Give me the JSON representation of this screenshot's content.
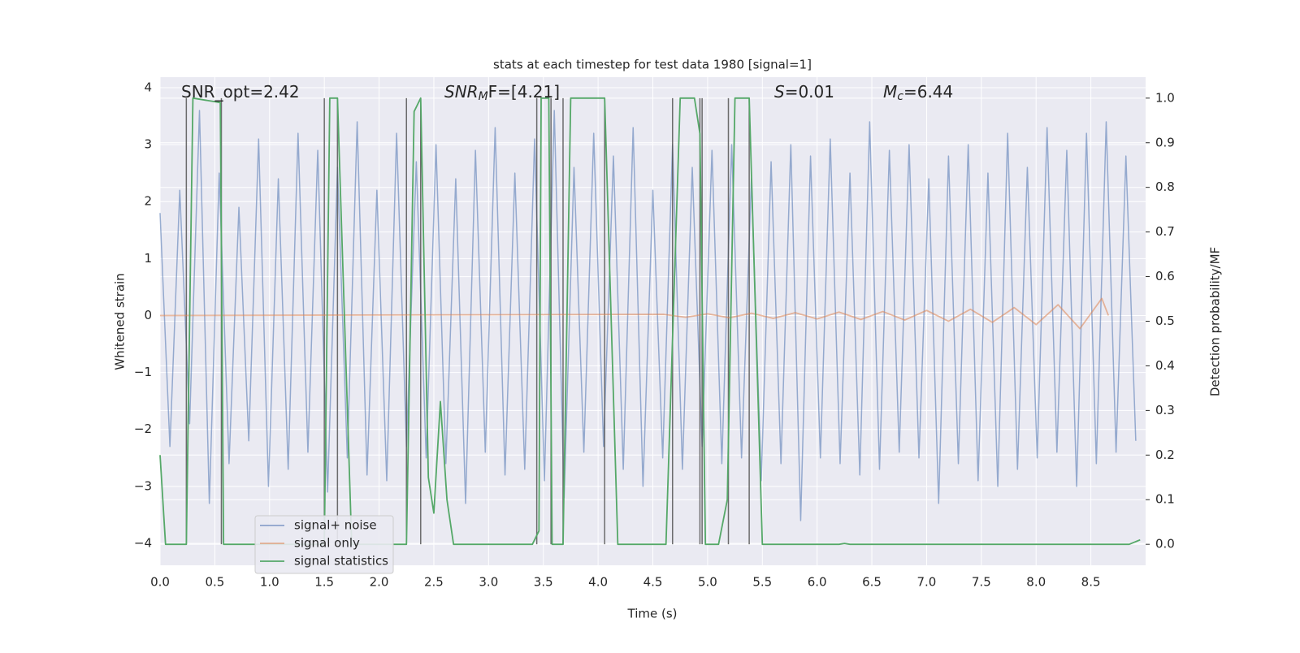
{
  "chart_data": {
    "type": "line",
    "title": "stats at each timestep for test data 1980 [signal=1]",
    "xlabel": "Time (s)",
    "ylabel": "Whitened strain",
    "y2label": "Detection probability/MF",
    "annotations": [
      {
        "main": "SNR_opt=2.42"
      },
      {
        "main": "SNR",
        "sub": "M",
        "rest": "F=[4.21]"
      },
      {
        "main": "S",
        "rest": "=0.01"
      },
      {
        "main": "M",
        "sub": "c",
        "rest": "=6.44"
      }
    ],
    "xlim": [
      0,
      9.0
    ],
    "ylim": [
      -4.385,
      4.185
    ],
    "y2lim": [
      -0.047,
      1.047
    ],
    "xticks": [
      {
        "value": 0,
        "label": "0.0"
      },
      0.5,
      {
        "value": 1,
        "label": "1.0"
      },
      1.5,
      {
        "value": 2,
        "label": "2.0"
      },
      2.5,
      {
        "value": 3,
        "label": "3.0"
      },
      3.5,
      {
        "value": 4,
        "label": "4.0"
      },
      4.5,
      {
        "value": 5,
        "label": "5.0"
      },
      5.5,
      {
        "value": 6,
        "label": "6.0"
      },
      6.5,
      {
        "value": 7,
        "label": "7.0"
      },
      7.5,
      {
        "value": 8,
        "label": "8.0"
      },
      8.5
    ],
    "yticks": [
      {
        "value": -4,
        "label": "−4"
      },
      {
        "value": -3,
        "label": "−3"
      },
      {
        "value": -2,
        "label": "−2"
      },
      {
        "value": -1,
        "label": "−1"
      },
      0,
      1,
      2,
      3,
      4
    ],
    "y2ticks": [
      {
        "value": 0,
        "label": "0.0"
      },
      0.1,
      0.2,
      0.3,
      0.4,
      0.5,
      0.6,
      0.7,
      0.8,
      0.9,
      {
        "value": 1,
        "label": "1.0"
      }
    ],
    "grid": true,
    "legend": "lower left",
    "series": [
      {
        "name": "signal+ noise",
        "color": "#4c72b0",
        "x": [
          0,
          0.09,
          0.18,
          0.27,
          0.36,
          0.45,
          0.54,
          0.63,
          0.72,
          0.81,
          0.9,
          0.99,
          1.08,
          1.17,
          1.26,
          1.35,
          1.44,
          1.53,
          1.62,
          1.71,
          1.8,
          1.89,
          1.98,
          2.07,
          2.16,
          2.25,
          2.34,
          2.43,
          2.52,
          2.61,
          2.7,
          2.79,
          2.88,
          2.97,
          3.06,
          3.15,
          3.24,
          3.33,
          3.42,
          3.51,
          3.6,
          3.69,
          3.78,
          3.87,
          3.96,
          4.05,
          4.14,
          4.23,
          4.32,
          4.41,
          4.5,
          4.59,
          4.68,
          4.77,
          4.86,
          4.95,
          5.04,
          5.13,
          5.22,
          5.31,
          5.4,
          5.49,
          5.58,
          5.67,
          5.76,
          5.85,
          5.94,
          6.03,
          6.12,
          6.21,
          6.3,
          6.39,
          6.48,
          6.57,
          6.66,
          6.75,
          6.84,
          6.93,
          7.02,
          7.11,
          7.2,
          7.29,
          7.38,
          7.47,
          7.56,
          7.65,
          7.74,
          7.83,
          7.92,
          8.01,
          8.1,
          8.19,
          8.28,
          8.37,
          8.46,
          8.55,
          8.64,
          8.73,
          8.82,
          8.91
        ],
        "values": [
          1.8,
          -2.3,
          2.2,
          -1.9,
          3.6,
          -3.3,
          2.5,
          -2.6,
          1.9,
          -2.2,
          3.1,
          -3.0,
          2.4,
          -2.7,
          3.2,
          -2.4,
          2.9,
          -3.1,
          2.6,
          -2.5,
          3.4,
          -2.8,
          2.2,
          -2.9,
          3.2,
          -2.3,
          2.7,
          -2.5,
          3.0,
          -2.6,
          2.4,
          -3.3,
          2.9,
          -2.4,
          3.3,
          -2.8,
          2.5,
          -2.7,
          3.1,
          -2.9,
          3.6,
          -3.2,
          2.6,
          -2.4,
          3.2,
          -2.3,
          2.8,
          -2.7,
          3.3,
          -3.0,
          2.2,
          -2.5,
          3.0,
          -2.7,
          2.6,
          -2.3,
          2.9,
          -2.6,
          3.0,
          -2.5,
          2.4,
          -2.9,
          2.7,
          -2.6,
          3.0,
          -3.6,
          2.8,
          -2.5,
          3.1,
          -2.6,
          2.5,
          -2.8,
          3.4,
          -2.7,
          2.9,
          -2.4,
          3.0,
          -2.5,
          2.4,
          -3.3,
          2.8,
          -2.6,
          3.0,
          -2.9,
          2.5,
          -3.0,
          3.2,
          -2.7,
          2.6,
          -2.5,
          3.3,
          -2.4,
          2.9,
          -3.0,
          3.2,
          -2.6,
          3.4,
          -2.4,
          2.8,
          -2.2
        ]
      },
      {
        "name": "signal only",
        "color": "#dd8452",
        "x": [
          0,
          4.6,
          4.8,
          5.0,
          5.2,
          5.4,
          5.6,
          5.8,
          6.0,
          6.2,
          6.4,
          6.6,
          6.8,
          7.0,
          7.2,
          7.4,
          7.6,
          7.8,
          8.0,
          8.2,
          8.4,
          8.6,
          8.66
        ],
        "values": [
          0,
          0.02,
          -0.03,
          0.03,
          -0.04,
          0.04,
          -0.05,
          0.05,
          -0.06,
          0.06,
          -0.07,
          0.07,
          -0.08,
          0.09,
          -0.1,
          0.11,
          -0.12,
          0.14,
          -0.16,
          0.19,
          -0.23,
          0.3,
          0
        ]
      },
      {
        "name": "signal statistics",
        "color": "#55a868",
        "axis": "y2",
        "x": [
          0,
          0.05,
          0.24,
          0.3,
          0.55,
          0.58,
          0.65,
          1.5,
          1.55,
          1.62,
          1.75,
          2.25,
          2.32,
          2.38,
          2.45,
          2.5,
          2.56,
          2.62,
          2.68,
          3.4,
          3.46,
          3.48,
          3.55,
          3.58,
          3.68,
          3.75,
          4.06,
          4.18,
          4.62,
          4.75,
          4.88,
          4.93,
          4.98,
          5.1,
          5.18,
          5.25,
          5.38,
          5.5,
          6.2,
          6.25,
          6.3,
          8.85,
          8.95
        ],
        "values": [
          0.2,
          0,
          0,
          1,
          0.99,
          0,
          0,
          0,
          1,
          1,
          0,
          0,
          0.97,
          1,
          0.15,
          0.07,
          0.32,
          0.1,
          0,
          0,
          0.03,
          1,
          1,
          0,
          0,
          1,
          1,
          0,
          0,
          1,
          1,
          0.92,
          0,
          0,
          0.1,
          1,
          1,
          0,
          0,
          0.002,
          0,
          0,
          0.01
        ]
      }
    ],
    "markers": {
      "color": "#555555",
      "x": [
        0.24,
        0.56,
        1.5,
        1.62,
        2.25,
        2.38,
        3.44,
        3.57,
        3.68,
        4.06,
        4.68,
        4.93,
        4.95,
        5.19,
        5.38
      ],
      "values": [
        1,
        1,
        1,
        1,
        1,
        1,
        1,
        1,
        1,
        1,
        1,
        1,
        1,
        1,
        1
      ]
    }
  }
}
